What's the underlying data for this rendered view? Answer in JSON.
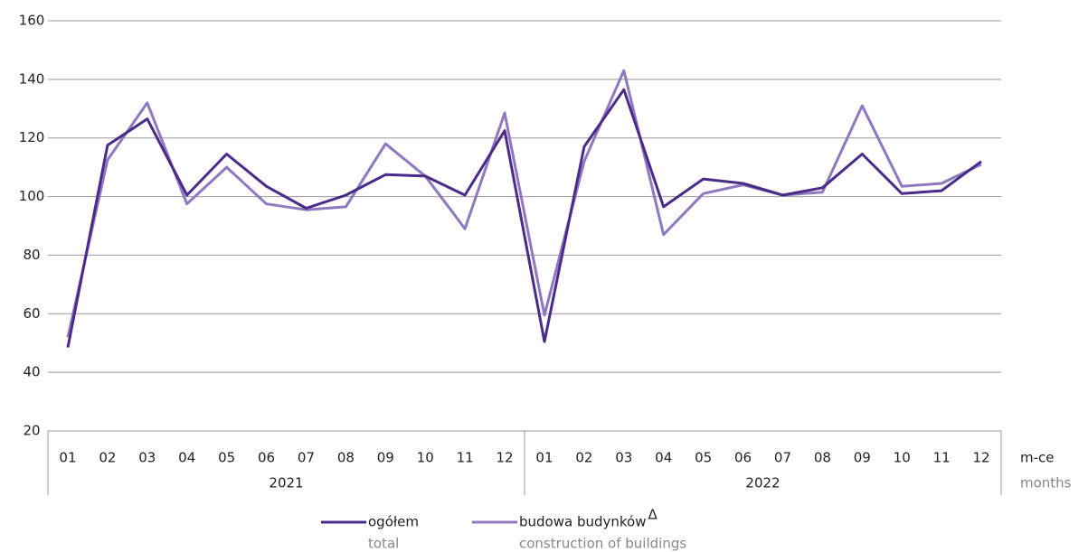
{
  "chart_data": {
    "type": "line",
    "categories": [
      "01",
      "02",
      "03",
      "04",
      "05",
      "06",
      "07",
      "08",
      "09",
      "10",
      "11",
      "12",
      "01",
      "02",
      "03",
      "04",
      "05",
      "06",
      "07",
      "08",
      "09",
      "10",
      "11",
      "12"
    ],
    "x_groups": [
      "2021",
      "2022"
    ],
    "x_label": "m-ce",
    "x_label_en": "months",
    "series": [
      {
        "name": "ogółem",
        "name_en": "total",
        "color": "#4b2a8a",
        "values": [
          48.5,
          117.5,
          126.5,
          100.5,
          114.5,
          103.5,
          96,
          100.5,
          107.5,
          107,
          100.5,
          122.5,
          50.5,
          117,
          136.5,
          96.5,
          106,
          104.5,
          100.5,
          103,
          114.5,
          101,
          102,
          112
        ]
      },
      {
        "name": "budowa budynków",
        "name_mark": "Δ",
        "name_en": "construction of buildings",
        "color": "#8f78c0",
        "values": [
          52,
          112.5,
          132,
          97.5,
          110,
          97.5,
          95.5,
          96.5,
          118,
          107,
          89,
          128.5,
          59.5,
          112,
          143,
          87,
          101,
          104,
          100.5,
          101.5,
          131,
          103.5,
          104.5,
          111
        ]
      }
    ],
    "ylim": [
      20,
      160
    ],
    "yticks": [
      20,
      40,
      60,
      80,
      100,
      120,
      140,
      160
    ],
    "grid": true
  }
}
